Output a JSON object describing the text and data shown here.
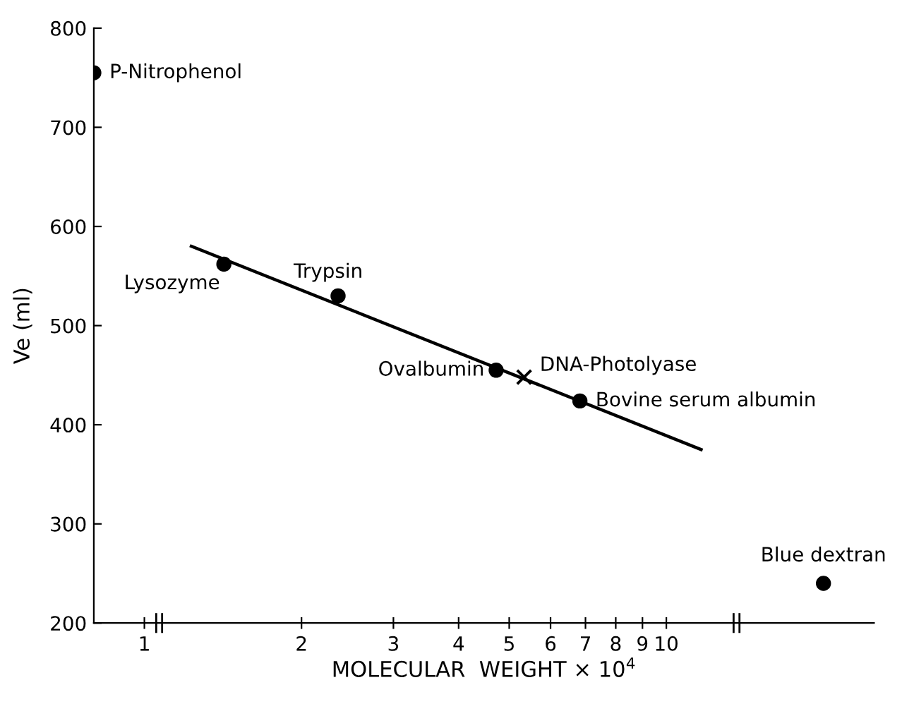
{
  "chart_data": {
    "type": "scatter",
    "xlabel": "MOLECULAR  WEIGHT × 10$^{4}$",
    "ylabel": "Ve (ml)",
    "log": "x",
    "xlim": [
      0.8,
      25
    ],
    "xticks": [
      1,
      2,
      3,
      4,
      5,
      6,
      7,
      8,
      9,
      10
    ],
    "ylim": [
      200,
      800
    ],
    "yticks": [
      200,
      300,
      400,
      500,
      600,
      700,
      800
    ],
    "grid": false,
    "legend": false,
    "series": [
      {
        "marker": "circle",
        "color": "#000000",
        "x": [
          0.8,
          1.42,
          2.35,
          4.72,
          6.83,
          20
        ],
        "values": [
          755,
          562,
          530,
          455,
          424,
          240
        ]
      },
      {
        "marker": "cross",
        "color": "#000000",
        "x": [
          5.34
        ],
        "values": [
          448
        ]
      },
      {
        "type": "line",
        "marker": "none",
        "line_style": "solid",
        "color": "#000000",
        "x": [
          1.23,
          11.66
        ],
        "values": [
          580,
          375
        ]
      }
    ],
    "annotations": [
      {
        "text": "P-Nitrophenol",
        "x": 0.8,
        "y": 755
      },
      {
        "text": "Lysozyme",
        "x": 1.42,
        "y": 562
      },
      {
        "text": "Trypsin",
        "x": 2.35,
        "y": 530
      },
      {
        "text": "Ovalbumin",
        "x": 4.72,
        "y": 455
      },
      {
        "text": "DNA-Photolyase",
        "x": 5.34,
        "y": 448
      },
      {
        "text": "Bovine serum albumin",
        "x": 6.83,
        "y": 424
      },
      {
        "text": "Blue dextran",
        "x": 20,
        "y": 240
      }
    ]
  }
}
